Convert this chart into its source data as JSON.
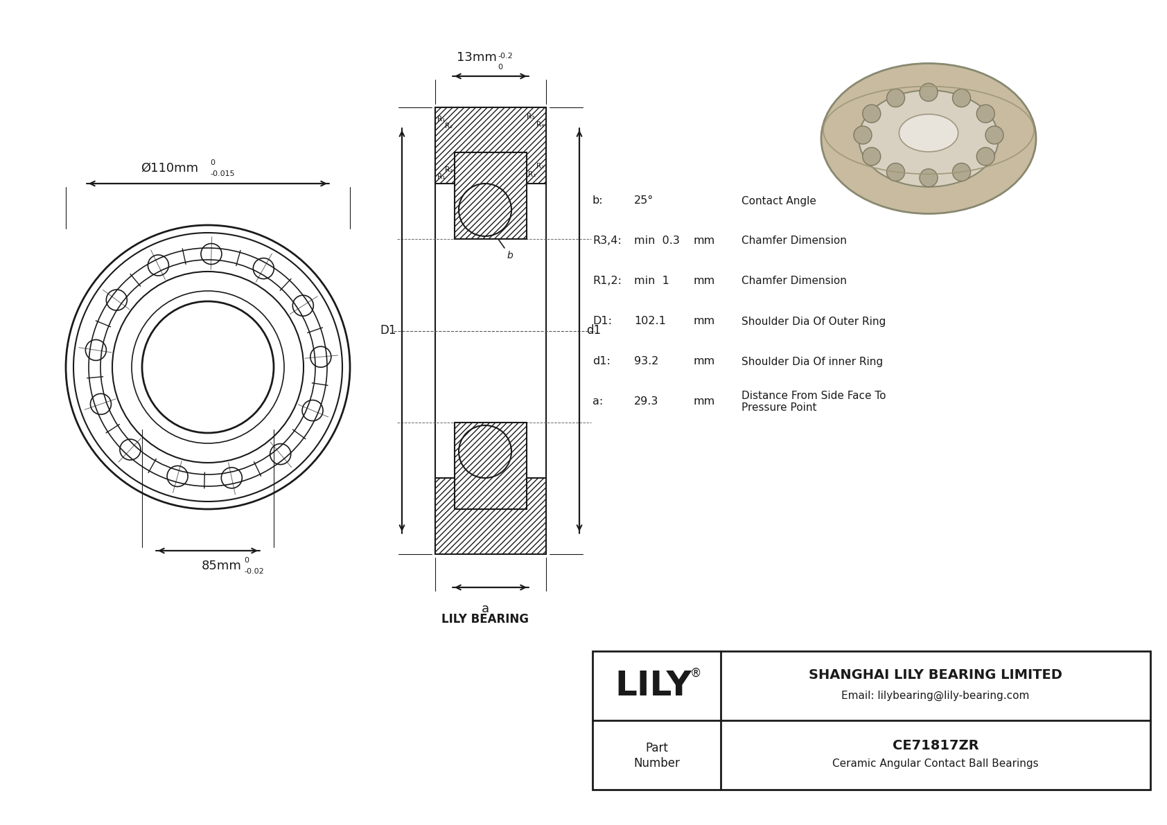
{
  "bg_color": "#ffffff",
  "line_color": "#1a1a1a",
  "outer_dia_label": "Ø110mm",
  "outer_tol_top": "0",
  "outer_tol_bot": "-0.015",
  "width_label": "13mm",
  "width_tol_top": "0",
  "width_tol_bot": "-0.2",
  "inner_dia_label": "85mm",
  "inner_tol_top": "0",
  "inner_tol_bot": "-0.02",
  "D1_label": "D1",
  "d1_label": "d1",
  "a_label": "a",
  "lily_bearing_label": "LILY BEARING",
  "specs": [
    [
      "b:",
      "25°",
      "",
      "Contact Angle"
    ],
    [
      "R3,4:",
      "min  0.3",
      "mm",
      "Chamfer Dimension"
    ],
    [
      "R1,2:",
      "min  1",
      "mm",
      "Chamfer Dimension"
    ],
    [
      "D1:",
      "102.1",
      "mm",
      "Shoulder Dia Of Outer Ring"
    ],
    [
      "d1:",
      "93.2",
      "mm",
      "Shoulder Dia Of inner Ring"
    ],
    [
      "a:",
      "29.3",
      "mm",
      "Distance From Side Face To\nPressure Point"
    ]
  ],
  "company_name": "SHANGHAI LILY BEARING LIMITED",
  "company_email": "Email: lilybearing@lily-bearing.com",
  "part_number": "CE71817ZR",
  "part_type": "Ceramic Angular Contact Ball Bearings",
  "bearing_3d_color": "#c8bba0",
  "bearing_3d_dark": "#a09070",
  "bearing_3d_hole": "#d8d0c0",
  "bearing_3d_ball": "#b0a890"
}
